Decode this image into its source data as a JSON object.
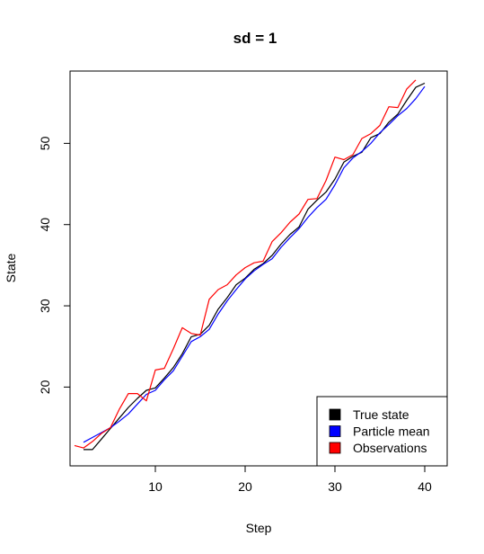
{
  "chart_data": {
    "type": "line",
    "title": "sd =  1",
    "xlabel": "Step",
    "ylabel": "State",
    "xlim": [
      0.5,
      42.5
    ],
    "ylim": [
      10.3,
      58.9
    ],
    "x_ticks": [
      10,
      20,
      30,
      40
    ],
    "y_ticks": [
      20,
      30,
      40,
      50
    ],
    "grid": false,
    "legend_position": "bottom-right",
    "series": [
      {
        "name": "True state",
        "color": "#000000",
        "x": [
          2,
          3,
          4,
          5,
          6,
          7,
          8,
          9,
          10,
          11,
          12,
          13,
          14,
          15,
          16,
          17,
          18,
          19,
          20,
          21,
          22,
          23,
          24,
          25,
          26,
          27,
          28,
          29,
          30,
          31,
          32,
          33,
          34,
          35,
          36,
          37,
          38,
          39,
          40
        ],
        "values": [
          12.3,
          12.3,
          13.6,
          14.9,
          16.2,
          17.5,
          18.6,
          19.6,
          19.9,
          21.1,
          22.4,
          24.1,
          26.2,
          26.5,
          27.6,
          29.6,
          31.0,
          32.6,
          33.4,
          34.5,
          35.2,
          36.2,
          37.6,
          38.8,
          39.7,
          41.9,
          43.0,
          44.0,
          45.6,
          47.7,
          48.4,
          48.9,
          50.7,
          51.2,
          52.6,
          53.6,
          55.3,
          56.9,
          57.4
        ]
      },
      {
        "name": "Particle mean",
        "color": "#0000ff",
        "x": [
          2,
          3,
          4,
          5,
          6,
          7,
          8,
          9,
          10,
          11,
          12,
          13,
          14,
          15,
          16,
          17,
          18,
          19,
          20,
          21,
          22,
          23,
          24,
          25,
          26,
          27,
          28,
          29,
          30,
          31,
          32,
          33,
          34,
          35,
          36,
          37,
          38,
          39,
          40
        ],
        "values": [
          13.2,
          13.8,
          14.4,
          15.0,
          15.8,
          16.7,
          17.9,
          19.1,
          19.6,
          20.9,
          22.0,
          23.8,
          25.6,
          26.2,
          27.1,
          29.0,
          30.6,
          32.0,
          33.3,
          34.3,
          35.1,
          35.8,
          37.2,
          38.4,
          39.5,
          40.9,
          42.1,
          43.1,
          44.9,
          47.0,
          48.2,
          49.0,
          50.0,
          51.3,
          52.3,
          53.4,
          54.3,
          55.5,
          57.0
        ]
      },
      {
        "name": "Observations",
        "color": "#ff0000",
        "x": [
          1,
          2,
          3,
          4,
          5,
          6,
          7,
          8,
          9,
          10,
          11,
          12,
          13,
          14,
          15,
          16,
          17,
          18,
          19,
          20,
          21,
          22,
          23,
          24,
          25,
          26,
          27,
          28,
          29,
          30,
          31,
          32,
          33,
          34,
          35,
          36,
          37,
          38,
          39
        ],
        "values": [
          12.8,
          12.5,
          13.3,
          14.3,
          15.0,
          17.3,
          19.2,
          19.2,
          18.3,
          22.1,
          22.3,
          24.7,
          27.3,
          26.6,
          26.4,
          30.8,
          32.0,
          32.6,
          33.8,
          34.7,
          35.3,
          35.5,
          37.9,
          39.0,
          40.3,
          41.3,
          43.1,
          43.2,
          45.4,
          48.3,
          48.0,
          48.6,
          50.6,
          51.2,
          52.2,
          54.5,
          54.4,
          56.7,
          57.8
        ]
      }
    ]
  }
}
